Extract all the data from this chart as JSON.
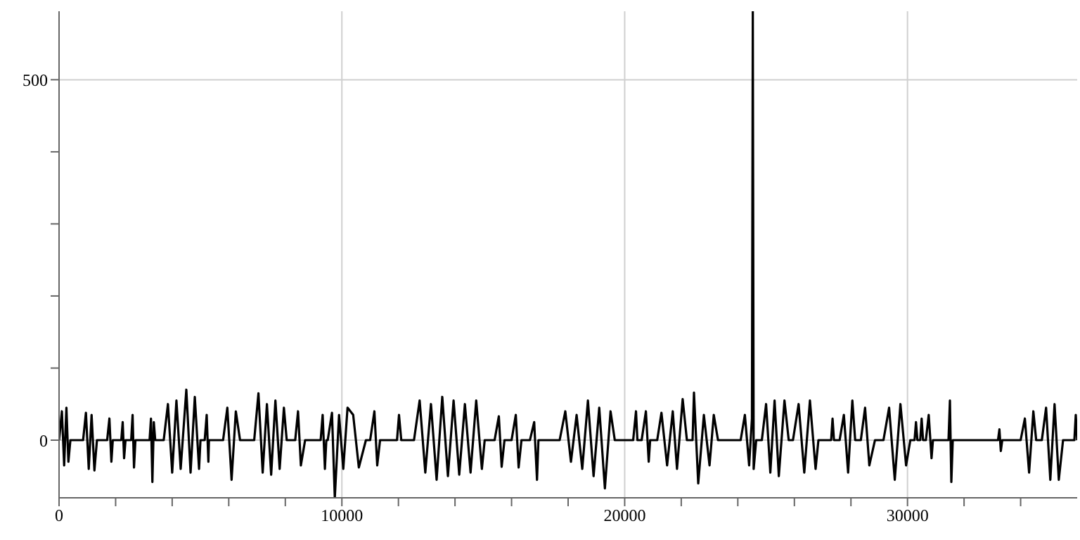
{
  "chart_data": {
    "type": "line",
    "x": [
      0,
      100,
      180,
      260,
      330,
      400,
      850,
      950,
      1050,
      1150,
      1250,
      1340,
      1700,
      1780,
      1850,
      1900,
      2200,
      2250,
      2300,
      2350,
      2550,
      2600,
      2650,
      2700,
      3200,
      3250,
      3300,
      3350,
      3400,
      3700,
      3850,
      4000,
      4150,
      4300,
      4500,
      4650,
      4800,
      4950,
      5000,
      5150,
      5220,
      5280,
      5300,
      5800,
      5950,
      6100,
      6250,
      6400,
      6900,
      7050,
      7200,
      7350,
      7500,
      7650,
      7800,
      7950,
      8050,
      8350,
      8450,
      8550,
      8700,
      9250,
      9320,
      9400,
      9450,
      9500,
      9650,
      9750,
      9900,
      10050,
      10200,
      10400,
      10600,
      10850,
      11000,
      11150,
      11250,
      11350,
      11950,
      12020,
      12100,
      12550,
      12750,
      12950,
      13150,
      13350,
      13550,
      13750,
      13950,
      14150,
      14350,
      14550,
      14750,
      14950,
      15050,
      15400,
      15550,
      15650,
      15750,
      16000,
      16150,
      16250,
      16350,
      16650,
      16800,
      16900,
      16950,
      17700,
      17900,
      18100,
      18300,
      18500,
      18700,
      18900,
      19100,
      19300,
      19500,
      19650,
      20300,
      20400,
      20450,
      20600,
      20750,
      20850,
      20900,
      21150,
      21300,
      21500,
      21700,
      21850,
      22050,
      22200,
      22400,
      22450,
      22600,
      22800,
      23000,
      23150,
      23300,
      24100,
      24250,
      24400,
      24500,
      24530,
      24560,
      24650,
      24850,
      25000,
      25150,
      25300,
      25450,
      25650,
      25800,
      25950,
      26150,
      26350,
      26550,
      26750,
      26850,
      27300,
      27350,
      27400,
      27600,
      27750,
      27900,
      28050,
      28150,
      28350,
      28500,
      28650,
      28850,
      29150,
      29350,
      29550,
      29750,
      29950,
      30100,
      30250,
      30300,
      30350,
      30450,
      30500,
      30550,
      30650,
      30750,
      30850,
      30900,
      31450,
      31500,
      31550,
      31600,
      33200,
      33250,
      33300,
      33350,
      34000,
      34150,
      34300,
      34450,
      34550,
      34750,
      34900,
      35050,
      35200,
      35350,
      35500,
      35900,
      35950,
      36000
    ],
    "series": [
      {
        "color": "#000000",
        "values": [
          0,
          40,
          -35,
          45,
          -30,
          0,
          0,
          38,
          -40,
          35,
          -42,
          0,
          0,
          30,
          -30,
          0,
          0,
          25,
          -25,
          0,
          0,
          35,
          -38,
          0,
          0,
          30,
          -58,
          25,
          0,
          0,
          50,
          -45,
          55,
          -40,
          70,
          -45,
          60,
          -40,
          0,
          0,
          35,
          -30,
          0,
          0,
          45,
          -55,
          40,
          0,
          0,
          65,
          -45,
          50,
          -48,
          55,
          -40,
          45,
          0,
          0,
          40,
          -35,
          0,
          0,
          35,
          -40,
          0,
          0,
          38,
          -80,
          35,
          -40,
          45,
          35,
          -38,
          0,
          0,
          40,
          -35,
          0,
          0,
          35,
          0,
          0,
          55,
          -45,
          50,
          -55,
          60,
          -50,
          55,
          -48,
          50,
          -45,
          55,
          -40,
          0,
          0,
          33,
          -37,
          0,
          0,
          35,
          -38,
          0,
          0,
          25,
          -55,
          0,
          0,
          40,
          -30,
          35,
          -40,
          55,
          -50,
          45,
          -67,
          40,
          0,
          0,
          40,
          0,
          0,
          40,
          -30,
          0,
          0,
          38,
          -35,
          40,
          -40,
          57,
          0,
          0,
          66,
          -60,
          35,
          -35,
          35,
          0,
          0,
          35,
          -35,
          30,
          595,
          -40,
          0,
          0,
          50,
          -45,
          55,
          -50,
          55,
          0,
          0,
          50,
          -45,
          55,
          -40,
          0,
          0,
          30,
          0,
          0,
          35,
          -45,
          55,
          0,
          0,
          45,
          -35,
          0,
          0,
          45,
          -55,
          50,
          -35,
          0,
          0,
          25,
          0,
          0,
          30,
          0,
          0,
          35,
          -25,
          0,
          0,
          55,
          -58,
          0,
          0,
          15,
          -15,
          0,
          0,
          30,
          -45,
          40,
          0,
          0,
          45,
          -55,
          50,
          -55,
          0,
          0,
          35,
          0
        ]
      }
    ],
    "xlim": [
      0,
      36000
    ],
    "xticks": [
      0,
      {
        "value": 2000,
        "label": null
      },
      {
        "value": 4000,
        "label": null
      },
      {
        "value": 6000,
        "label": null
      },
      {
        "value": 8000,
        "label": null
      },
      10000,
      {
        "value": 12000,
        "label": null
      },
      {
        "value": 14000,
        "label": null
      },
      {
        "value": 16000,
        "label": null
      },
      {
        "value": 18000,
        "label": null
      },
      20000,
      {
        "value": 22000,
        "label": null
      },
      {
        "value": 24000,
        "label": null
      },
      {
        "value": 26000,
        "label": null
      },
      {
        "value": 28000,
        "label": null
      },
      30000,
      {
        "value": 32000,
        "label": null
      },
      {
        "value": 34000,
        "label": null
      }
    ],
    "ylim": [
      -80,
      595
    ],
    "yticks": [
      0,
      {
        "value": 100,
        "label": null
      },
      {
        "value": 200,
        "label": null
      },
      {
        "value": 300,
        "label": null
      },
      {
        "value": 400,
        "label": null
      },
      500
    ],
    "grid": true,
    "legend": false,
    "marker": "none",
    "line_style": "solid"
  }
}
